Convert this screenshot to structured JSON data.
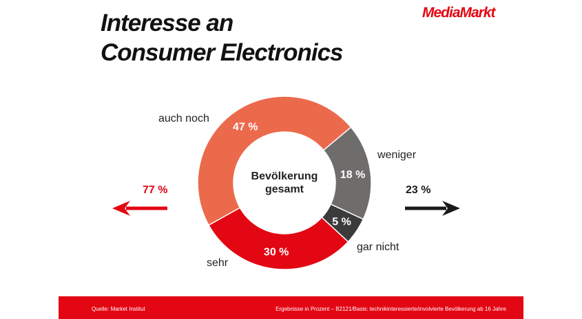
{
  "title": [
    "Interesse an",
    "Consumer Electronics"
  ],
  "logo": "MediaMarkt",
  "chart_data": {
    "type": "pie",
    "center_label": [
      "Bevölkerung",
      "gesamt"
    ],
    "categories": [
      "weniger",
      "gar nicht",
      "sehr",
      "auch noch"
    ],
    "values": [
      18,
      5,
      30,
      47
    ],
    "value_labels": [
      "18 %",
      "5 %",
      "30 %",
      "47 %"
    ],
    "colors": [
      "#6f6c6c",
      "#3b3b3b",
      "#e30613",
      "#ec6a4c"
    ],
    "groups": [
      {
        "label": "77 %",
        "color": "#e30613",
        "direction": "left"
      },
      {
        "label": "23 %",
        "color": "#1a1a1a",
        "direction": "right"
      }
    ]
  },
  "footer": {
    "source": "Quelle: Market Institut",
    "note": "Ergebnisse in Prozent – B2121/Basis: technikinteressierte/involvierte Bevölkerung ab 16 Jahre"
  }
}
